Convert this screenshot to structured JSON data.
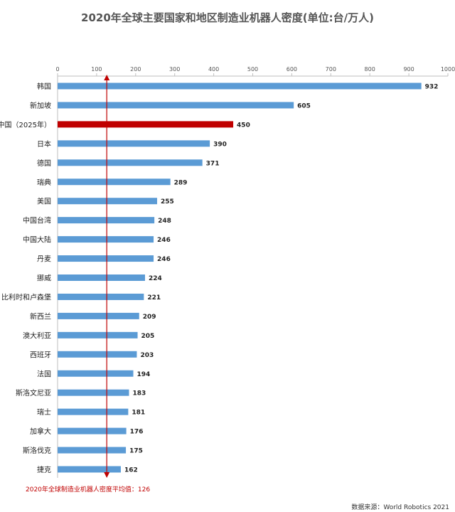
{
  "chart_data": {
    "type": "bar",
    "orientation": "horizontal",
    "title": "2020年全球主要国家和地区制造业机器人密度(单位:台/万人)",
    "categories": [
      "韩国",
      "新加坡",
      "中国（2025年）",
      "日本",
      "德国",
      "瑞典",
      "美国",
      "中国台湾",
      "中国大陆",
      "丹麦",
      "挪威",
      "比利时和卢森堡",
      "新西兰",
      "澳大利亚",
      "西班牙",
      "法国",
      "斯洛文尼亚",
      "瑞士",
      "加拿大",
      "斯洛伐克",
      "捷克"
    ],
    "values": [
      932,
      605,
      450,
      390,
      371,
      289,
      255,
      248,
      246,
      246,
      224,
      221,
      209,
      205,
      203,
      194,
      183,
      181,
      176,
      175,
      162
    ],
    "highlight_category": "中国（2025年）",
    "colors": {
      "bar": "#5b9bd5",
      "highlight": "#c00000",
      "reference_line": "#c00000"
    },
    "xlim": [
      0,
      1000
    ],
    "xticks": [
      0,
      100,
      200,
      300,
      400,
      500,
      600,
      700,
      800,
      900,
      1000
    ],
    "x_axis_position": "top",
    "grid": false,
    "reference_line": {
      "value": 126,
      "label": "2020年全球制造业机器人密度平均值：126"
    },
    "source": "数据来源：World Robotics 2021"
  }
}
